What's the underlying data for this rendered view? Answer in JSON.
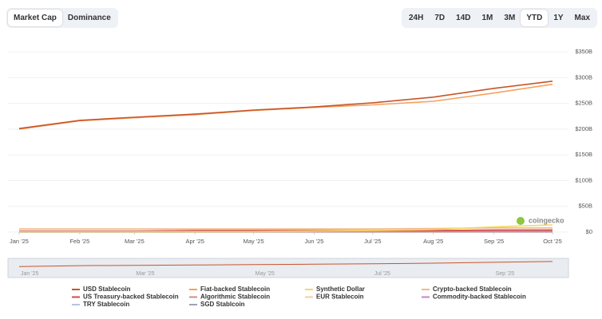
{
  "tabs": [
    "Market Cap",
    "Dominance"
  ],
  "ranges": [
    "24H",
    "7D",
    "14D",
    "1M",
    "3M",
    "YTD",
    "1Y",
    "Max"
  ],
  "active_range": "YTD",
  "watermark": "coingecko",
  "chart_data": {
    "type": "line",
    "x": [
      "2025-01",
      "2025-02",
      "2025-03",
      "2025-04",
      "2025-05",
      "2025-06",
      "2025-07",
      "2025-08",
      "2025-09",
      "2025-10"
    ],
    "xticks": [
      {
        "value": "2025-01",
        "label": "Jan '25"
      },
      {
        "value": "2025-02",
        "label": "Feb '25"
      },
      {
        "value": "2025-03",
        "label": "Mar '25"
      },
      {
        "value": "2025-04",
        "label": "Apr '25"
      },
      {
        "value": "2025-05",
        "label": "May '25"
      },
      {
        "value": "2025-06",
        "label": "Jun '25"
      },
      {
        "value": "2025-07",
        "label": "Jul '25"
      },
      {
        "value": "2025-08",
        "label": "Aug '25"
      },
      {
        "value": "2025-09",
        "label": "Sep '25"
      },
      {
        "value": "2025-10",
        "label": "Oct '25"
      }
    ],
    "ylim": [
      0,
      350
    ],
    "yticks": [
      {
        "value": 0,
        "label": "$0"
      },
      {
        "value": 50,
        "label": "$50B"
      },
      {
        "value": 100,
        "label": "$100B"
      },
      {
        "value": 150,
        "label": "$150B"
      },
      {
        "value": 200,
        "label": "$200B"
      },
      {
        "value": 250,
        "label": "$250B"
      },
      {
        "value": 300,
        "label": "$300B"
      },
      {
        "value": 350,
        "label": "$350B"
      }
    ],
    "grid": true,
    "series": [
      {
        "name": "USD Stablecoin",
        "color": "#c8552b",
        "values": [
          201,
          217,
          223,
          229,
          237,
          243,
          251,
          262,
          279,
          293
        ]
      },
      {
        "name": "Fiat-backed Stablecoin",
        "color": "#f5a25a",
        "values": [
          200,
          216,
          222,
          228,
          236,
          242,
          247,
          254,
          270,
          287
        ]
      },
      {
        "name": "Synthetic Dollar",
        "color": "#f6d55c",
        "values": [
          1,
          1,
          1,
          1,
          1,
          2,
          3,
          5,
          10,
          14
        ]
      },
      {
        "name": "Crypto-backed Stablecoin",
        "color": "#f2b889",
        "values": [
          6,
          6,
          6,
          6,
          6,
          6,
          6,
          7,
          8,
          8
        ]
      },
      {
        "name": "US Treasury-backed Stablecoin",
        "color": "#d44a4a",
        "values": [
          2,
          2,
          2,
          3,
          3,
          3,
          3,
          3,
          4,
          4
        ]
      },
      {
        "name": "Algorithmic Stablecoin",
        "color": "#d48a8a",
        "values": [
          1,
          1,
          1,
          1,
          1,
          1,
          1,
          1,
          1,
          1
        ]
      },
      {
        "name": "EUR Stablecoin",
        "color": "#f5cf9a",
        "values": [
          0.5,
          0.5,
          0.5,
          0.5,
          0.5,
          0.5,
          0.6,
          0.6,
          0.7,
          0.7
        ]
      },
      {
        "name": "Commodity-backed Stablecoin",
        "color": "#c684c6",
        "values": [
          1,
          1,
          1,
          1,
          1,
          1,
          1,
          1,
          2,
          2
        ]
      },
      {
        "name": "TRY Stablecoin",
        "color": "#b4c6df",
        "values": [
          0,
          0,
          0,
          0,
          0,
          0,
          0,
          0,
          0,
          0
        ]
      },
      {
        "name": "SGD Stablcoin",
        "color": "#9ca3b4",
        "values": [
          0,
          0,
          0,
          0,
          0,
          0,
          0,
          0,
          0,
          0
        ]
      }
    ]
  }
}
